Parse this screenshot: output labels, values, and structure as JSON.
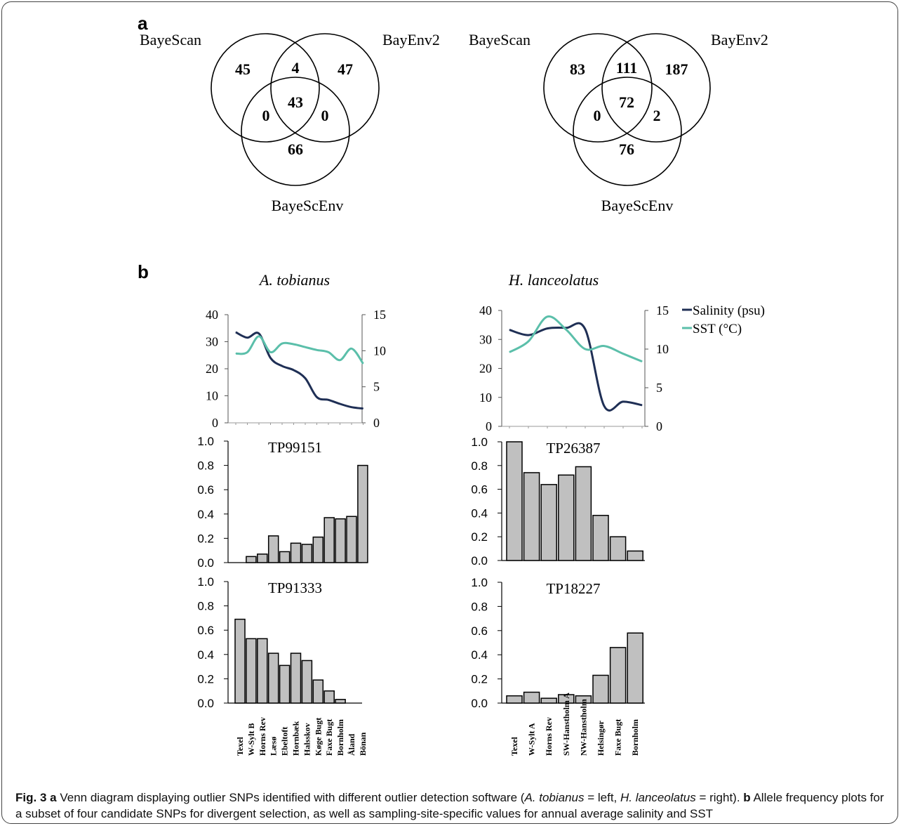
{
  "panel_a_label": "a",
  "panel_b_label": "b",
  "venn": [
    {
      "labels": {
        "top_left": "BayeScan",
        "top_right": "BayEnv2",
        "bottom": "BayeScEnv"
      },
      "counts": {
        "only_bayescan": "45",
        "bayescan_bayenv2": "4",
        "only_bayenv2": "47",
        "all_three": "43",
        "bayescan_bayescenv": "0",
        "bayenv2_bayescenv": "0",
        "only_bayescenv": "66"
      }
    },
    {
      "labels": {
        "top_left": "BayeScan",
        "top_right": "BayEnv2",
        "bottom": "BayeScEnv"
      },
      "counts": {
        "only_bayescan": "83",
        "bayescan_bayenv2": "111",
        "only_bayenv2": "187",
        "all_three": "72",
        "bayescan_bayescenv": "0",
        "bayenv2_bayescenv": "2",
        "only_bayescenv": "76"
      }
    }
  ],
  "species": [
    "A. tobianus",
    "H. lanceolatus"
  ],
  "legend": {
    "salinity": "Salinity (psu)",
    "sst": "SST (°C)"
  },
  "colors": {
    "salinity": "#1f2f55",
    "sst": "#5bbfaa",
    "bar_fill": "#c0c0c0"
  },
  "chart_data": [
    {
      "type": "line",
      "species": "A. tobianus",
      "categories": [
        "Texel",
        "W-Sylt B",
        "Horns Rev",
        "Læsø",
        "Ebeltoft",
        "Hornbæk",
        "Halsskov",
        "Køge Bugt",
        "Faxe Bugt",
        "Bornholm",
        "Åland",
        "Bönan"
      ],
      "series": [
        {
          "name": "Salinity (psu)",
          "axis": "left",
          "values": [
            33.5,
            31.5,
            33,
            24,
            21,
            19.5,
            16.5,
            9.5,
            8.5,
            7,
            5.8,
            5.3
          ]
        },
        {
          "name": "SST (°C)",
          "axis": "right",
          "values": [
            9.6,
            9.8,
            12,
            9.8,
            11,
            10.9,
            10.5,
            10.1,
            9.8,
            8.7,
            10.3,
            8.2
          ]
        }
      ],
      "ylim_left": [
        0,
        40
      ],
      "yticks_left": [
        "0",
        "10",
        "20",
        "30",
        "40"
      ],
      "ylim_right": [
        0,
        15
      ],
      "yticks_right": [
        "0",
        "5",
        "10",
        "15"
      ]
    },
    {
      "type": "line",
      "species": "H. lanceolatus",
      "categories": [
        "Texel",
        "W-Sylt A",
        "Horns Rev",
        "SW-Hanstholm A",
        "NW-Hanstholm",
        "Helsingør",
        "Faxe Bugt",
        "Bornholm"
      ],
      "series": [
        {
          "name": "Salinity (psu)",
          "axis": "left",
          "values": [
            33.3,
            31.5,
            33.8,
            34,
            33.5,
            7,
            8.5,
            7.3
          ]
        },
        {
          "name": "SST (°C)",
          "axis": "right",
          "values": [
            9.6,
            11,
            14.2,
            12.5,
            10,
            10.4,
            9.4,
            8.4
          ]
        }
      ],
      "ylim_left": [
        0,
        40
      ],
      "yticks_left": [
        "0",
        "10",
        "20",
        "30",
        "40"
      ],
      "ylim_right": [
        0,
        15
      ],
      "yticks_right": [
        "0",
        "5",
        "10",
        "15"
      ]
    },
    {
      "type": "bar",
      "title": "TP99151",
      "species": "A. tobianus",
      "categories": [
        "Texel",
        "W-Sylt B",
        "Horns Rev",
        "Læsø",
        "Ebeltoft",
        "Hornbæk",
        "Halsskov",
        "Køge Bugt",
        "Faxe Bugt",
        "Bornholm",
        "Åland",
        "Bönan"
      ],
      "values": [
        0,
        0.05,
        0.07,
        0.22,
        0.09,
        0.16,
        0.15,
        0.21,
        0.37,
        0.36,
        0.38,
        0.8
      ],
      "ylim": [
        0,
        1
      ],
      "yticks": [
        "0.0",
        "0.2",
        "0.4",
        "0.6",
        "0.8",
        "1.0"
      ]
    },
    {
      "type": "bar",
      "title": "TP26387",
      "species": "H. lanceolatus",
      "categories": [
        "Texel",
        "W-Sylt A",
        "Horns Rev",
        "SW-Hanstholm A",
        "NW-Hanstholm",
        "Helsingør",
        "Faxe Bugt",
        "Bornholm"
      ],
      "values": [
        1.0,
        0.74,
        0.64,
        0.72,
        0.79,
        0.38,
        0.2,
        0.08
      ],
      "ylim": [
        0,
        1
      ],
      "yticks": [
        "0.0",
        "0.2",
        "0.4",
        "0.6",
        "0.8",
        "1.0"
      ]
    },
    {
      "type": "bar",
      "title": "TP91333",
      "species": "A. tobianus",
      "categories": [
        "Texel",
        "W-Sylt B",
        "Horns Rev",
        "Læsø",
        "Ebeltoft",
        "Hornbæk",
        "Halsskov",
        "Køge Bugt",
        "Faxe Bugt",
        "Bornholm",
        "Åland",
        "Bönan"
      ],
      "values": [
        0.69,
        0.53,
        0.53,
        0.41,
        0.31,
        0.41,
        0.35,
        0.19,
        0.1,
        0.03,
        0,
        0
      ],
      "ylim": [
        0,
        1
      ],
      "yticks": [
        "0.0",
        "0.2",
        "0.4",
        "0.6",
        "0.8",
        "1.0"
      ]
    },
    {
      "type": "bar",
      "title": "TP18227",
      "species": "H. lanceolatus",
      "categories": [
        "Texel",
        "W-Sylt A",
        "Horns Rev",
        "SW-Hanstholm A",
        "NW-Hanstholm",
        "Helsingør",
        "Faxe Bugt",
        "Bornholm"
      ],
      "values": [
        0.06,
        0.09,
        0.04,
        0.07,
        0.06,
        0.23,
        0.46,
        0.58
      ],
      "ylim": [
        0,
        1
      ],
      "yticks": [
        "0.0",
        "0.2",
        "0.4",
        "0.6",
        "0.8",
        "1.0"
      ]
    }
  ],
  "caption": {
    "fig_label": "Fig. 3",
    "a_label": "a",
    "a_text": " Venn diagram displaying outlier SNPs identified with different outlier detection software (",
    "a_species1": "A. tobianus",
    "a_mid": " = left, ",
    "a_species2": "H. lanceolatus",
    "a_end": " = right). ",
    "b_label": "b",
    "b_text": " Allele frequency plots for a subset of four candidate SNPs for divergent selection, as well as sampling-site-specific values for annual average salinity and SST"
  }
}
